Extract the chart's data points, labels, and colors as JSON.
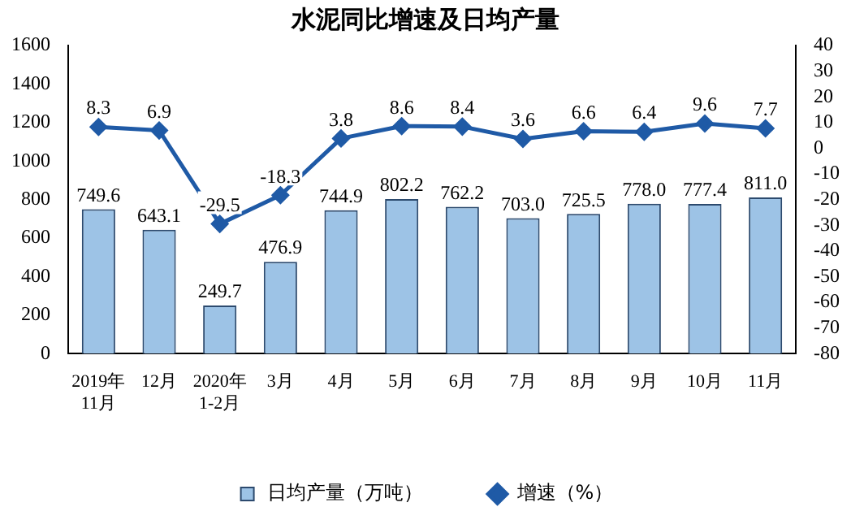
{
  "chart_data": {
    "type": "bar",
    "title": "水泥同比增速及日均产量",
    "categories": [
      "2019年\n11月",
      "12月",
      "2020年\n1-2月",
      "3月",
      "4月",
      "5月",
      "6月",
      "7月",
      "8月",
      "9月",
      "10月",
      "11月"
    ],
    "series": [
      {
        "name": "日均产量（万吨）",
        "color": "#9dc3e6",
        "values": [
          749.6,
          643.1,
          249.7,
          476.9,
          744.9,
          802.2,
          762.2,
          703.0,
          725.5,
          778.0,
          777.4,
          811.0
        ],
        "value_labels": [
          "749.6",
          "643.1",
          "249.7",
          "476.9",
          "744.9",
          "802.2",
          "762.2",
          "703.0",
          "725.5",
          "778.0",
          "777.4",
          "811.0"
        ]
      },
      {
        "name": "增速（%）",
        "type": "line",
        "axis": "y2",
        "color": "#1f5aa6",
        "marker": "diamond",
        "values": [
          8.3,
          6.9,
          -29.5,
          -18.3,
          3.8,
          8.6,
          8.4,
          3.6,
          6.6,
          6.4,
          9.6,
          7.7
        ],
        "value_labels": [
          "8.3",
          "6.9",
          "-29.5",
          "-18.3",
          "3.8",
          "8.6",
          "8.4",
          "3.6",
          "6.6",
          "6.4",
          "9.6",
          "7.7"
        ]
      }
    ],
    "ylim": [
      0,
      1600
    ],
    "yticks": [
      0,
      200,
      400,
      600,
      800,
      1000,
      1200,
      1400,
      1600
    ],
    "y2lim": [
      -80,
      40
    ],
    "y2ticks": [
      -80,
      -70,
      -60,
      -50,
      -40,
      -30,
      -20,
      -10,
      0,
      10,
      20,
      30,
      40
    ],
    "grid": false,
    "legend": "bottom"
  }
}
